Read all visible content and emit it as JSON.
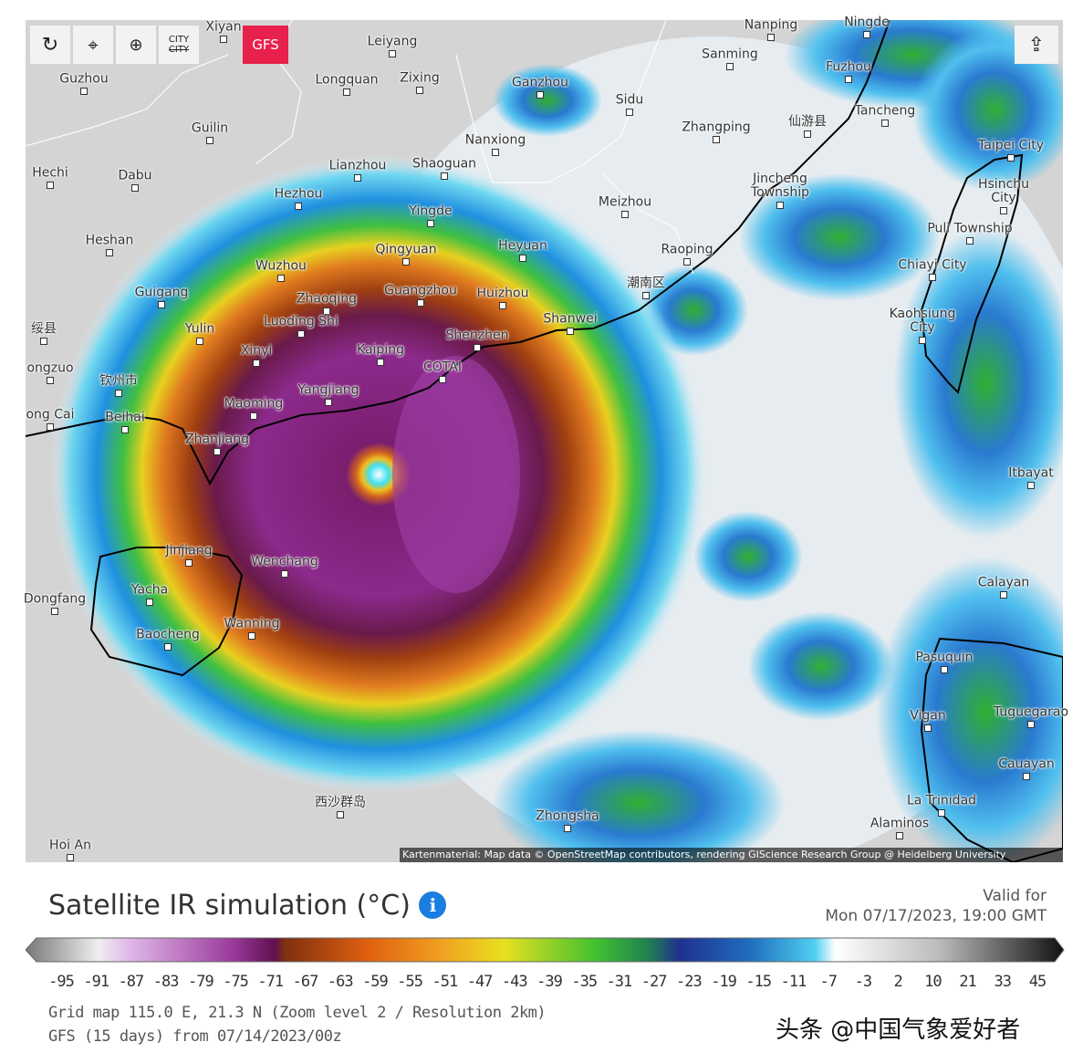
{
  "toolbar": {
    "city_top": "CITY",
    "city_bottom": "CITY",
    "model": "GFS"
  },
  "map": {
    "cities": [
      "Xiyan",
      "Leiyang",
      "Nanping",
      "Ningde",
      "Guzhou",
      "Longquan",
      "Zixing",
      "Ganzhou",
      "Sanming",
      "Fuzhou",
      "Guilin",
      "Sidu",
      "Zhangping",
      "仙游县",
      "Tancheng",
      "Nanxiong",
      "Taipei City",
      "Hechi",
      "Dabu",
      "Lianzhou",
      "Shaoguan",
      "Hezhou",
      "Jincheng\nTownship",
      "Hsinchu\nCity",
      "Meizhou",
      "Yingde",
      "Puli Township",
      "Heshan",
      "Heyuan",
      "Raoping",
      "Qingyuan",
      "Chiayi City",
      "Wuzhou",
      "潮南区",
      "Guigang",
      "Guangzhou",
      "Huizhou",
      "Zhaoqing",
      "Shanwei",
      "Kaohsiung\nCity",
      "绥县",
      "Luoding Shi",
      "Yulin",
      "Shenzhen",
      "Xinyi",
      "Kaiping",
      "ongzuo",
      "钦州市",
      "COTAI",
      "Yangjiang",
      "Maoming",
      "ong Cai",
      "Beihai",
      "Zhanjiang",
      "Itbayat",
      "Jinjiang",
      "Wenchang",
      "Calayan",
      "Dongfang",
      "Yacha",
      "Wanning",
      "Baocheng",
      "Pasuquin",
      "Vigan",
      "Tuguegarao",
      "Cauayan",
      "La Trinidad",
      "西沙群岛",
      "Zhongsha",
      "Alaminos",
      "Hoi An"
    ],
    "attribution": "Kartenmaterial: Map data © OpenStreetMap contributors, rendering GIScience Research Group @ Heidelberg University"
  },
  "legend": {
    "title": "Satellite IR simulation (°C)",
    "valid_label": "Valid for",
    "valid_time": "Mon 07/17/2023, 19:00 GMT",
    "ticks": [
      -95,
      -91,
      -87,
      -83,
      -79,
      -75,
      -71,
      -67,
      -63,
      -59,
      -55,
      -51,
      -47,
      -43,
      -39,
      -35,
      -31,
      -27,
      -23,
      -19,
      -15,
      -11,
      -7,
      -3,
      2,
      10,
      21,
      33,
      45
    ]
  },
  "footer": {
    "grid": "Grid map 115.0 E, 21.3 N (Zoom level 2 / Resolution 2km)",
    "run": "GFS (15 days) from 07/14/2023/00z"
  },
  "watermark": "头条 @中国气象爱好者"
}
